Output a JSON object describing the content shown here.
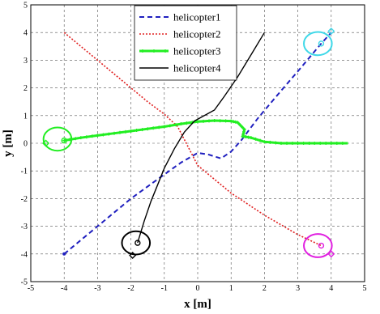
{
  "chart_data": {
    "type": "line",
    "xlabel": "x [m]",
    "ylabel": "y [m]",
    "xlim": [
      -5,
      5
    ],
    "ylim": [
      -5,
      5
    ],
    "xticks": [
      "-5",
      "-4",
      "-3",
      "-2",
      "-1",
      "0",
      "1",
      "2",
      "3",
      "4",
      "5"
    ],
    "yticks": [
      "-5",
      "-4",
      "-3",
      "-2",
      "-1",
      "0",
      "1",
      "2",
      "3",
      "4",
      "5"
    ],
    "grid": true,
    "legend_position": "top-center",
    "series": [
      {
        "name": "helicopter1",
        "color": "#1f1fbf",
        "style": "dashed",
        "x": [
          -4.0,
          -3.0,
          -2.0,
          -1.2,
          -0.5,
          0.0,
          0.3,
          0.7,
          1.0,
          1.3,
          1.8,
          2.5,
          3.0,
          3.7,
          4.0
        ],
        "y": [
          -4.0,
          -3.0,
          -2.0,
          -1.3,
          -0.7,
          -0.35,
          -0.4,
          -0.55,
          -0.3,
          0.1,
          0.9,
          1.9,
          2.6,
          3.6,
          4.0
        ],
        "start_marker": [
          -4.0,
          -4.0
        ],
        "end_point": [
          3.7,
          3.6
        ],
        "circle_color": "#3fd8e8",
        "circle_center": [
          3.6,
          3.6
        ],
        "circle_radius": 0.42,
        "diamond": [
          4.0,
          4.05
        ]
      },
      {
        "name": "helicopter2",
        "color": "#e02020",
        "style": "dotted",
        "x": [
          -4.0,
          -3.0,
          -2.0,
          -1.5,
          -1.0,
          -0.6,
          0.0,
          1.0,
          2.0,
          3.0,
          3.7
        ],
        "y": [
          4.0,
          3.0,
          2.0,
          1.5,
          1.05,
          0.6,
          -0.8,
          -1.8,
          -2.6,
          -3.3,
          -3.7
        ],
        "end_point": [
          3.7,
          -3.7
        ],
        "circle_color": "#e020e0",
        "circle_center": [
          3.6,
          -3.7
        ],
        "circle_radius": 0.42,
        "diamond": [
          4.0,
          -4.0
        ]
      },
      {
        "name": "helicopter3",
        "color": "#22ee22",
        "style": "solid-markers",
        "x": [
          -4.0,
          -3.5,
          -3.0,
          -2.5,
          -2.0,
          -1.5,
          -1.0,
          -0.5,
          0.0,
          0.5,
          1.0,
          1.2,
          1.4,
          1.35,
          1.6,
          2.0,
          2.5,
          3.0,
          3.5,
          4.0,
          4.5
        ],
        "y": [
          0.1,
          0.2,
          0.28,
          0.36,
          0.44,
          0.52,
          0.6,
          0.7,
          0.78,
          0.82,
          0.8,
          0.75,
          0.5,
          0.25,
          0.2,
          0.05,
          0.0,
          0.0,
          0.0,
          0.0,
          0.0
        ],
        "end_point": [
          -4.0,
          0.1
        ],
        "circle_color": "#22ee22",
        "circle_center": [
          -4.2,
          0.15
        ],
        "circle_radius": 0.42,
        "diamond": [
          -4.55,
          0.0
        ]
      },
      {
        "name": "helicopter4",
        "color": "#000000",
        "style": "solid",
        "x": [
          -1.8,
          -1.6,
          -1.4,
          -1.2,
          -1.0,
          -0.7,
          -0.4,
          -0.1,
          0.2,
          0.5,
          0.8,
          1.2,
          1.6,
          2.0
        ],
        "y": [
          -3.6,
          -2.8,
          -2.1,
          -1.5,
          -0.9,
          -0.2,
          0.4,
          0.8,
          1.0,
          1.2,
          1.7,
          2.4,
          3.2,
          4.0
        ],
        "end_point": [
          -1.8,
          -3.6
        ],
        "circle_color": "#000000",
        "circle_center": [
          -1.85,
          -3.6
        ],
        "circle_radius": 0.42,
        "diamond": [
          -1.95,
          -4.05
        ]
      }
    ]
  }
}
